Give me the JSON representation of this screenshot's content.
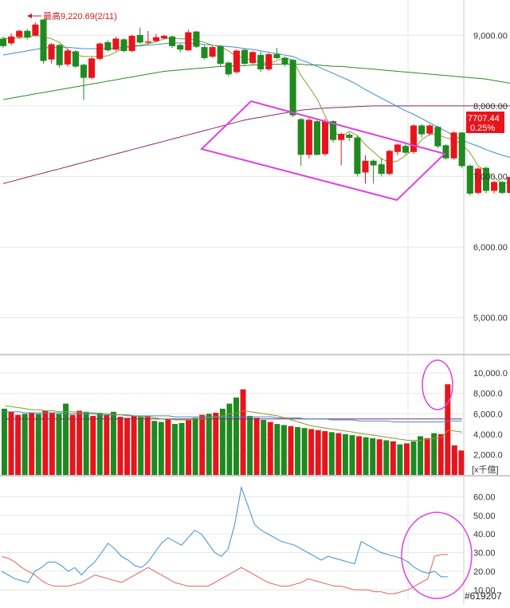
{
  "colors": {
    "up": "#e8141c",
    "down": "#1f8a1f",
    "ma5": "#8a9a2a",
    "ma20": "#3a8fd0",
    "ma60": "#2a8a2a",
    "ma240": "#8a2a6a",
    "annotation": "#e040e0",
    "kd_k": "#3a8fd0",
    "kd_d": "#e06060",
    "price_tag_bg": "#e8141c",
    "grid": "#e6e6e6"
  },
  "chart_data": [
    {
      "panel": "price",
      "type": "candlestick",
      "annotation_high": "最高9,220.69(2/11)",
      "price_tag": {
        "value": "7707.44",
        "change": "0.25%"
      },
      "ylim": [
        4500,
        9500
      ],
      "y_ticks": [
        "9,000.00",
        "8,000.00",
        "7,000.00",
        "6,000.00",
        "5,000.00"
      ],
      "y_tick_values": [
        9000,
        8000,
        7000,
        6000,
        5000
      ],
      "candles": [
        [
          8950,
          8850,
          8980,
          8820
        ],
        [
          8890,
          8980,
          9030,
          8860
        ],
        [
          8980,
          9060,
          9080,
          8950
        ],
        [
          9060,
          8970,
          9090,
          8940
        ],
        [
          9000,
          9150,
          9180,
          8980
        ],
        [
          9220,
          8640,
          9221,
          8600
        ],
        [
          8660,
          8870,
          8890,
          8600
        ],
        [
          8860,
          8580,
          8880,
          8540
        ],
        [
          8590,
          8780,
          8810,
          8560
        ],
        [
          8770,
          8560,
          8790,
          8540
        ],
        [
          8580,
          8400,
          8600,
          8080
        ],
        [
          8400,
          8670,
          8690,
          8380
        ],
        [
          8670,
          8880,
          8900,
          8650
        ],
        [
          8900,
          8790,
          8930,
          8770
        ],
        [
          8800,
          8950,
          8980,
          8780
        ],
        [
          8940,
          8780,
          8960,
          8760
        ],
        [
          8780,
          8990,
          9010,
          8760
        ],
        [
          9000,
          8900,
          9110,
          8880
        ],
        [
          8900,
          8910,
          9060,
          8870
        ],
        [
          8920,
          8970,
          9020,
          8900
        ],
        [
          8960,
          8990,
          9010,
          8940
        ],
        [
          8980,
          8850,
          9000,
          8820
        ],
        [
          8860,
          8800,
          8880,
          8760
        ],
        [
          8790,
          9040,
          9080,
          8780
        ],
        [
          9050,
          8840,
          9060,
          8820
        ],
        [
          8830,
          8680,
          8860,
          8660
        ],
        [
          8700,
          8830,
          8850,
          8680
        ],
        [
          8840,
          8600,
          8860,
          8560
        ],
        [
          8610,
          8450,
          8630,
          8420
        ],
        [
          8480,
          8780,
          8800,
          8460
        ],
        [
          8790,
          8600,
          8820,
          8580
        ],
        [
          8610,
          8760,
          8780,
          8590
        ],
        [
          8720,
          8520,
          8770,
          8480
        ],
        [
          8520,
          8730,
          8750,
          8500
        ],
        [
          8730,
          8680,
          8820,
          8660
        ],
        [
          8680,
          8590,
          8700,
          8560
        ],
        [
          8650,
          7870,
          8660,
          7840
        ],
        [
          7810,
          7310,
          7830,
          7150
        ],
        [
          7310,
          7800,
          7830,
          7260
        ],
        [
          7780,
          7310,
          7800,
          7300
        ],
        [
          7320,
          7780,
          7820,
          7290
        ],
        [
          7780,
          7520,
          7800,
          7480
        ],
        [
          7520,
          7600,
          7620,
          7160
        ],
        [
          7590,
          7550,
          7620,
          7500
        ],
        [
          7550,
          7040,
          7580,
          7000
        ],
        [
          7060,
          7220,
          7300,
          6900
        ],
        [
          7220,
          7160,
          7240,
          6900
        ],
        [
          7170,
          7040,
          7260,
          7000
        ],
        [
          7040,
          7360,
          7380,
          7020
        ],
        [
          7350,
          7450,
          7470,
          7300
        ],
        [
          7430,
          7340,
          7480,
          7310
        ],
        [
          7350,
          7720,
          7740,
          7320
        ],
        [
          7720,
          7600,
          7740,
          7550
        ],
        [
          7610,
          7720,
          7740,
          7580
        ],
        [
          7700,
          7430,
          7720,
          7400
        ],
        [
          7440,
          7260,
          7460,
          7240
        ],
        [
          7260,
          7620,
          7640,
          7240
        ],
        [
          7620,
          7150,
          7630,
          7120
        ],
        [
          7150,
          6760,
          7170,
          6730
        ],
        [
          6770,
          7110,
          7130,
          6750
        ],
        [
          7120,
          6800,
          7140,
          6760
        ],
        [
          6800,
          6920,
          6940,
          6760
        ],
        [
          6920,
          6770,
          6940,
          6750
        ],
        [
          6770,
          6990,
          7000,
          6750
        ],
        [
          7120,
          6790,
          7130,
          6580
        ],
        [
          6790,
          7120,
          7140,
          6770
        ],
        [
          7110,
          7080,
          7140,
          7060
        ],
        [
          7080,
          7110,
          7140,
          6980
        ],
        [
          7100,
          7070,
          7120,
          7050
        ],
        [
          7070,
          7170,
          7190,
          7050
        ],
        [
          7180,
          7250,
          7280,
          7150
        ],
        [
          7360,
          7740,
          7760,
          7340
        ],
        [
          7690,
          7720,
          7740,
          7670
        ]
      ],
      "ma5": [
        8960,
        8950,
        8965,
        8975,
        9000,
        8980,
        8950,
        8900,
        8800,
        8720,
        8700,
        8700,
        8700,
        8710,
        8760,
        8830,
        8850,
        8860,
        8880,
        8910,
        8950,
        8960,
        8950,
        8950,
        8930,
        8900,
        8860,
        8840,
        8780,
        8700,
        8680,
        8640,
        8620,
        8600,
        8640,
        8680,
        8650,
        8430,
        8270,
        8100,
        7860,
        7640,
        7560,
        7640,
        7580,
        7450,
        7350,
        7250,
        7200,
        7220,
        7300,
        7380,
        7520,
        7600,
        7590,
        7550,
        7520,
        7450,
        7340,
        7150,
        7080,
        6990,
        6900,
        6920,
        6860,
        6900,
        6980,
        7000,
        7040,
        7080,
        7130,
        7300,
        7400
      ],
      "ma20": [
        8720,
        8740,
        8760,
        8780,
        8800,
        8820,
        8830,
        8830,
        8830,
        8820,
        8810,
        8810,
        8810,
        8810,
        8820,
        8830,
        8840,
        8850,
        8860,
        8870,
        8880,
        8890,
        8890,
        8890,
        8880,
        8870,
        8860,
        8850,
        8840,
        8830,
        8810,
        8800,
        8780,
        8760,
        8740,
        8720,
        8700,
        8650,
        8610,
        8560,
        8510,
        8460,
        8410,
        8360,
        8300,
        8230,
        8170,
        8110,
        8050,
        7990,
        7930,
        7880,
        7820,
        7760,
        7700,
        7640,
        7580,
        7520,
        7470,
        7430,
        7380,
        7340,
        7300,
        7270,
        7240,
        7220,
        7200,
        7190,
        7180,
        7180,
        7190,
        7220,
        7260
      ],
      "ma60": [
        8090,
        8110,
        8130,
        8150,
        8170,
        8190,
        8210,
        8230,
        8250,
        8270,
        8290,
        8310,
        8330,
        8350,
        8370,
        8390,
        8410,
        8430,
        8450,
        8470,
        8490,
        8500,
        8510,
        8520,
        8530,
        8540,
        8550,
        8560,
        8560,
        8570,
        8570,
        8580,
        8580,
        8590,
        8590,
        8590,
        8590,
        8590,
        8580,
        8580,
        8570,
        8560,
        8560,
        8550,
        8540,
        8530,
        8520,
        8510,
        8500,
        8490,
        8480,
        8470,
        8460,
        8450,
        8440,
        8430,
        8420,
        8410,
        8400,
        8390,
        8380,
        8360,
        8340,
        8320,
        8300,
        8280,
        8260,
        8240,
        8220,
        8200,
        8180,
        8160,
        8140
      ],
      "ma240": [
        6900,
        6930,
        6960,
        6990,
        7020,
        7050,
        7080,
        7110,
        7140,
        7170,
        7200,
        7230,
        7260,
        7290,
        7320,
        7350,
        7380,
        7410,
        7440,
        7470,
        7500,
        7530,
        7560,
        7590,
        7620,
        7650,
        7680,
        7710,
        7740,
        7770,
        7800,
        7820,
        7840,
        7860,
        7880,
        7900,
        7920,
        7940,
        7950,
        7960,
        7970,
        7975,
        7980,
        7985,
        7990,
        7995,
        8000,
        8000,
        8000,
        8000,
        8000,
        8000,
        8000,
        8000,
        8000,
        8000,
        8000,
        8000,
        8000,
        8000,
        8000,
        8000,
        8000,
        8000,
        8000,
        8000,
        8000,
        8000,
        8000,
        8000,
        8000,
        8000,
        8000
      ],
      "channel": [
        [
          7950,
          8020
        ],
        [
          7470,
          7260
        ],
        [
          7200,
          6590
        ],
        [
          6230,
          7440
        ]
      ]
    },
    {
      "panel": "volume",
      "type": "bar",
      "unit": "[x千億]",
      "ylim": [
        0,
        11500
      ],
      "y_ticks": [
        "10,000.0",
        "8,000.0",
        "6,000.0",
        "4,000.0",
        "2,000.0"
      ],
      "y_tick_values": [
        10000,
        8000,
        6000,
        4000,
        2000
      ],
      "values": [
        6500,
        6200,
        5900,
        6000,
        6100,
        6000,
        6300,
        6100,
        6000,
        7000,
        5900,
        6300,
        6200,
        5800,
        6100,
        5900,
        6200,
        5700,
        5600,
        5800,
        5700,
        5800,
        5300,
        5200,
        5500,
        5000,
        5100,
        5400,
        5600,
        5900,
        6000,
        6100,
        6500,
        7000,
        7600,
        8400,
        5800,
        5600,
        5400,
        5200,
        5000,
        4900,
        4800,
        4700,
        4600,
        4500,
        4400,
        4300,
        4200,
        4100,
        4000,
        3900,
        3800,
        3700,
        3600,
        3500,
        3400,
        3300,
        3000,
        3100,
        3300,
        3800,
        3600,
        4100,
        4000,
        8900,
        2900,
        2400
      ],
      "ma_a": [
        6800,
        6700,
        6600,
        6500,
        6400,
        6400,
        6300,
        6300,
        6200,
        6200,
        6200,
        6100,
        6100,
        6100,
        6000,
        6000,
        5900,
        5900,
        5800,
        5800,
        5700,
        5700,
        5600,
        5500,
        5500,
        5400,
        5400,
        5400,
        5500,
        5500,
        5600,
        5700,
        5800,
        6000,
        6100,
        6300,
        6200,
        6100,
        6000,
        5900,
        5800,
        5600,
        5400,
        5200,
        5000,
        4800,
        4700,
        4600,
        4500,
        4400,
        4300,
        4200,
        4100,
        4000,
        3900,
        3800,
        3700,
        3600,
        3500,
        3400,
        3400,
        3400,
        3500,
        3600,
        3700,
        4400,
        4300,
        4200
      ],
      "ma_b": [
        6200,
        6200,
        6200,
        6100,
        6100,
        6100,
        6100,
        6100,
        6100,
        6000,
        6000,
        6000,
        6000,
        6000,
        5900,
        5900,
        5900,
        5900,
        5900,
        5800,
        5800,
        5800,
        5800,
        5800,
        5800,
        5700,
        5700,
        5700,
        5700,
        5700,
        5700,
        5700,
        5700,
        5700,
        5700,
        5700,
        5700,
        5700,
        5700,
        5700,
        5600,
        5600,
        5600,
        5600,
        5500,
        5500,
        5500,
        5500,
        5400,
        5400,
        5400,
        5400,
        5300,
        5300,
        5300,
        5300,
        5300,
        5200,
        5200,
        5200,
        5200,
        5200,
        5200,
        5200,
        5200,
        5300,
        5300,
        5300
      ],
      "ma_c": [
        5500,
        5500,
        5500,
        5500,
        5500,
        5500,
        5500,
        5500,
        5500,
        5500,
        5500,
        5500,
        5500,
        5500,
        5500,
        5500,
        5500,
        5500,
        5500,
        5500,
        5500,
        5500,
        5500,
        5500,
        5500,
        5500,
        5500,
        5500,
        5500,
        5500,
        5500,
        5500,
        5500,
        5500,
        5500,
        5500,
        5500,
        5500,
        5500,
        5500,
        5500,
        5500,
        5500,
        5500,
        5500,
        5500,
        5500,
        5500,
        5500,
        5500,
        5500,
        5500,
        5500,
        5500,
        5500,
        5500,
        5500,
        5500,
        5500,
        5500,
        5500,
        5500,
        5500,
        5500,
        5500,
        5500,
        5500,
        5500
      ]
    },
    {
      "panel": "indicator",
      "type": "line",
      "ylim": [
        5,
        70
      ],
      "y_ticks": [
        "60.00",
        "50.00",
        "40.00",
        "30.00",
        "20.00",
        "10.00"
      ],
      "y_tick_values": [
        60,
        50,
        40,
        30,
        20,
        10
      ],
      "blue": [
        20,
        18,
        16,
        15,
        14,
        20,
        22,
        25,
        25,
        23,
        20,
        22,
        18,
        22,
        25,
        30,
        35,
        32,
        28,
        26,
        23,
        22,
        25,
        30,
        35,
        38,
        36,
        34,
        38,
        42,
        40,
        35,
        30,
        28,
        32,
        45,
        65,
        55,
        45,
        42,
        40,
        38,
        36,
        35,
        34,
        32,
        30,
        28,
        26,
        28,
        27,
        26,
        25,
        24,
        36,
        34,
        32,
        30,
        29,
        28,
        27,
        25,
        22,
        20,
        19,
        20,
        17,
        17
      ],
      "red": [
        28,
        27,
        25,
        22,
        20,
        18,
        15,
        13,
        12,
        12,
        12,
        13,
        14,
        16,
        18,
        17,
        16,
        15,
        14,
        16,
        18,
        20,
        22,
        20,
        18,
        16,
        14,
        13,
        12,
        12,
        12,
        12,
        14,
        16,
        18,
        20,
        22,
        20,
        18,
        16,
        14,
        13,
        12,
        12,
        13,
        14,
        16,
        15,
        14,
        13,
        12,
        12,
        11,
        10,
        10,
        10,
        9,
        9,
        8,
        8,
        9,
        10,
        12,
        14,
        16,
        28,
        29,
        29
      ],
      "circle": [
        30,
        25
      ]
    }
  ],
  "footer": {
    "watermark": "#619207"
  }
}
